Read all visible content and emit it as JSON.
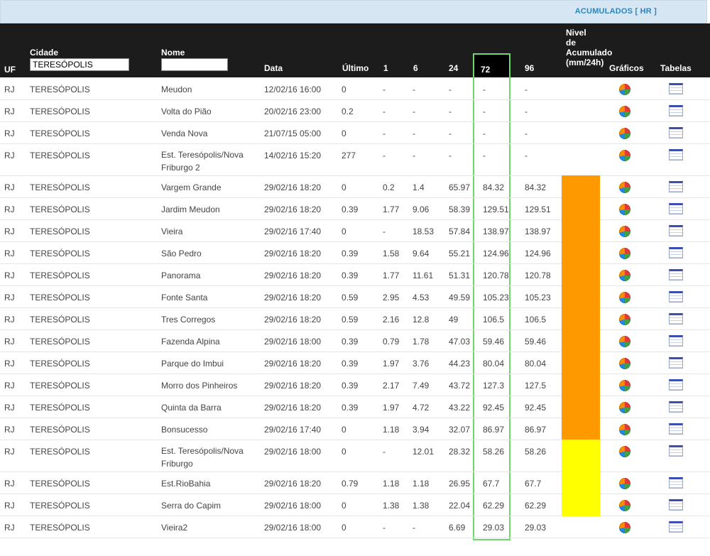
{
  "top": {
    "acumulados": "ACUMULADOS [ HR ]"
  },
  "columns": {
    "uf": "UF",
    "cidade": "Cidade",
    "nome": "Nome",
    "data": "Data",
    "ultimo": "Último",
    "h1": "1",
    "h6": "6",
    "h24": "24",
    "h72": "72",
    "h96": "96",
    "nivel": "Nivel\nde\nAcumulado\n(mm/24h)",
    "graficos": "Gráficos",
    "tabelas": "Tabelas"
  },
  "filters": {
    "cidade_value": "TERESÓPOLIS",
    "nome_value": ""
  },
  "level_colors": {
    "orange": "#ff9900",
    "yellow": "#ffff00",
    "none": ""
  },
  "rows": [
    {
      "uf": "RJ",
      "cidade": "TERESÓPOLIS",
      "nome": "Meudon",
      "data": "12/02/16 16:00",
      "ultimo": "0",
      "h1": "-",
      "h6": "-",
      "h24": "-",
      "h72": "-",
      "h96": "-",
      "level": "none"
    },
    {
      "uf": "RJ",
      "cidade": "TERESÓPOLIS",
      "nome": "Volta do Pião",
      "data": "20/02/16 23:00",
      "ultimo": "0.2",
      "h1": "-",
      "h6": "-",
      "h24": "-",
      "h72": "-",
      "h96": "-",
      "level": "none"
    },
    {
      "uf": "RJ",
      "cidade": "TERESÓPOLIS",
      "nome": "Venda Nova",
      "data": "21/07/15 05:00",
      "ultimo": "0",
      "h1": "-",
      "h6": "-",
      "h24": "-",
      "h72": "-",
      "h96": "-",
      "level": "none"
    },
    {
      "uf": "RJ",
      "cidade": "TERESÓPOLIS",
      "nome": "Est. Teresópolis/Nova Friburgo 2",
      "data": "14/02/16 15:20",
      "ultimo": "277",
      "h1": "-",
      "h6": "-",
      "h24": "-",
      "h72": "-",
      "h96": "-",
      "level": "none",
      "tall": true
    },
    {
      "uf": "RJ",
      "cidade": "TERESÓPOLIS",
      "nome": "Vargem Grande",
      "data": "29/02/16 18:20",
      "ultimo": "0",
      "h1": "0.2",
      "h6": "1.4",
      "h24": "65.97",
      "h72": "84.32",
      "h96": "84.32",
      "level": "orange"
    },
    {
      "uf": "RJ",
      "cidade": "TERESÓPOLIS",
      "nome": "Jardim Meudon",
      "data": "29/02/16 18:20",
      "ultimo": "0.39",
      "h1": "1.77",
      "h6": "9.06",
      "h24": "58.39",
      "h72": "129.51",
      "h96": "129.51",
      "level": "orange"
    },
    {
      "uf": "RJ",
      "cidade": "TERESÓPOLIS",
      "nome": "Vieira",
      "data": "29/02/16 17:40",
      "ultimo": "0",
      "h1": "-",
      "h6": "18.53",
      "h24": "57.84",
      "h72": "138.97",
      "h96": "138.97",
      "level": "orange"
    },
    {
      "uf": "RJ",
      "cidade": "TERESÓPOLIS",
      "nome": "São Pedro",
      "data": "29/02/16 18:20",
      "ultimo": "0.39",
      "h1": "1.58",
      "h6": "9.64",
      "h24": "55.21",
      "h72": "124.96",
      "h96": "124.96",
      "level": "orange"
    },
    {
      "uf": "RJ",
      "cidade": "TERESÓPOLIS",
      "nome": "Panorama",
      "data": "29/02/16 18:20",
      "ultimo": "0.39",
      "h1": "1.77",
      "h6": "11.61",
      "h24": "51.31",
      "h72": "120.78",
      "h96": "120.78",
      "level": "orange"
    },
    {
      "uf": "RJ",
      "cidade": "TERESÓPOLIS",
      "nome": "Fonte Santa",
      "data": "29/02/16 18:20",
      "ultimo": "0.59",
      "h1": "2.95",
      "h6": "4.53",
      "h24": "49.59",
      "h72": "105.23",
      "h96": "105.23",
      "level": "orange"
    },
    {
      "uf": "RJ",
      "cidade": "TERESÓPOLIS",
      "nome": "Tres Corregos",
      "data": "29/02/16 18:20",
      "ultimo": "0.59",
      "h1": "2.16",
      "h6": "12.8",
      "h24": "49",
      "h72": "106.5",
      "h96": "106.5",
      "level": "orange"
    },
    {
      "uf": "RJ",
      "cidade": "TERESÓPOLIS",
      "nome": "Fazenda Alpina",
      "data": "29/02/16 18:00",
      "ultimo": "0.39",
      "h1": "0.79",
      "h6": "1.78",
      "h24": "47.03",
      "h72": "59.46",
      "h96": "59.46",
      "level": "orange"
    },
    {
      "uf": "RJ",
      "cidade": "TERESÓPOLIS",
      "nome": "Parque do Imbui",
      "data": "29/02/16 18:20",
      "ultimo": "0.39",
      "h1": "1.97",
      "h6": "3.76",
      "h24": "44.23",
      "h72": "80.04",
      "h96": "80.04",
      "level": "orange"
    },
    {
      "uf": "RJ",
      "cidade": "TERESÓPOLIS",
      "nome": "Morro dos Pinheiros",
      "data": "29/02/16 18:20",
      "ultimo": "0.39",
      "h1": "2.17",
      "h6": "7.49",
      "h24": "43.72",
      "h72": "127.3",
      "h96": "127.5",
      "level": "orange"
    },
    {
      "uf": "RJ",
      "cidade": "TERESÓPOLIS",
      "nome": "Quinta da Barra",
      "data": "29/02/16 18:20",
      "ultimo": "0.39",
      "h1": "1.97",
      "h6": "4.72",
      "h24": "43.22",
      "h72": "92.45",
      "h96": "92.45",
      "level": "orange"
    },
    {
      "uf": "RJ",
      "cidade": "TERESÓPOLIS",
      "nome": "Bonsucesso",
      "data": "29/02/16 17:40",
      "ultimo": "0",
      "h1": "1.18",
      "h6": "3.94",
      "h24": "32.07",
      "h72": "86.97",
      "h96": "86.97",
      "level": "orange"
    },
    {
      "uf": "RJ",
      "cidade": "TERESÓPOLIS",
      "nome": "Est. Teresópolis/Nova Friburgo",
      "data": "29/02/16 18:00",
      "ultimo": "0",
      "h1": "-",
      "h6": "12.01",
      "h24": "28.32",
      "h72": "58.26",
      "h96": "58.26",
      "level": "yellow",
      "tall": true
    },
    {
      "uf": "RJ",
      "cidade": "TERESÓPOLIS",
      "nome": "Est.RioBahia",
      "data": "29/02/16 18:20",
      "ultimo": "0.79",
      "h1": "1.18",
      "h6": "1.18",
      "h24": "26.95",
      "h72": "67.7",
      "h96": "67.7",
      "level": "yellow"
    },
    {
      "uf": "RJ",
      "cidade": "TERESÓPOLIS",
      "nome": "Serra do Capim",
      "data": "29/02/16 18:00",
      "ultimo": "0",
      "h1": "1.38",
      "h6": "1.38",
      "h24": "22.04",
      "h72": "62.29",
      "h96": "62.29",
      "level": "yellow"
    },
    {
      "uf": "RJ",
      "cidade": "TERESÓPOLIS",
      "nome": "Vieira2",
      "data": "29/02/16 18:00",
      "ultimo": "0",
      "h1": "-",
      "h6": "-",
      "h24": "6.69",
      "h72": "29.03",
      "h96": "29.03",
      "level": "none"
    }
  ]
}
